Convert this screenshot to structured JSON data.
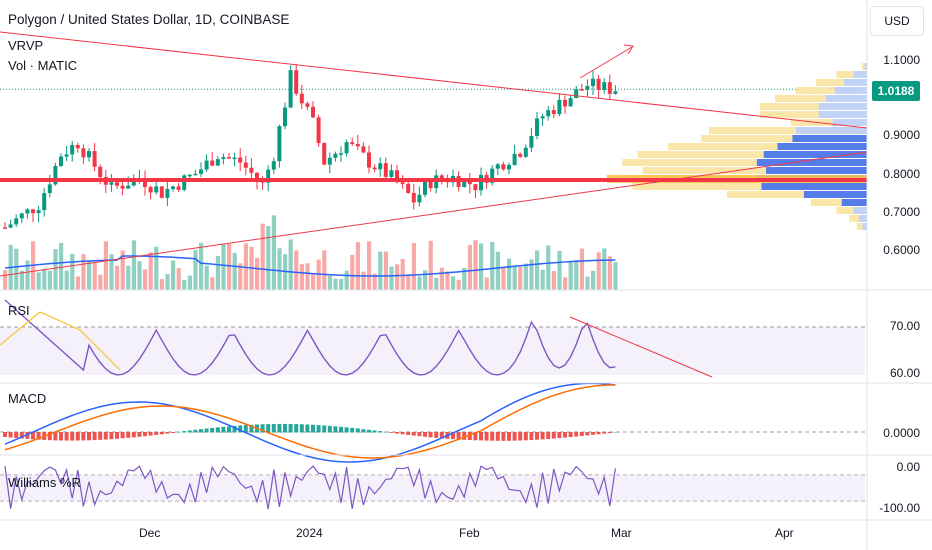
{
  "header": {
    "title": "Polygon / United States Dollar, 1D, COINBASE",
    "indicator_vrvp": "VRVP",
    "indicator_vol": "Vol · MATIC"
  },
  "currency_button": "USD",
  "price_axis": {
    "labels": [
      "1.1000",
      "0.9000",
      "0.8000",
      "0.7000",
      "0.6000"
    ],
    "current_price": "1.0188",
    "current_color": "#089981"
  },
  "panes": {
    "rsi": {
      "name": "RSI",
      "labels": [
        "70.00",
        "60.00"
      ]
    },
    "macd": {
      "name": "MACD",
      "labels": [
        "0.0000"
      ]
    },
    "williams": {
      "name": "Williams %R",
      "labels": [
        "0.00",
        "-100.00"
      ]
    }
  },
  "time_axis": [
    "Dec",
    "2024",
    "Feb",
    "Mar",
    "Apr"
  ],
  "colors": {
    "up": "#089981",
    "down": "#f23645",
    "volume_up": "#8fd0c3",
    "volume_down": "#f7a9a7",
    "trendline": "#f23645",
    "ma": "#2962ff",
    "macd": "#2962ff",
    "signal": "#ff6d00",
    "rsi": "#7e57c2",
    "rsi_ma": "#fbc02d"
  },
  "chart_data": {
    "type": "candlestick",
    "title": "Polygon / United States Dollar, 1D, COINBASE",
    "current_price": 1.0188,
    "support_level": 0.7845,
    "y_axis_ticks": [
      0.6,
      0.7,
      0.8,
      0.9,
      1.1
    ],
    "ylim": [
      0.55,
      1.15
    ],
    "x_ticks": [
      "Dec",
      "2024",
      "Feb",
      "Mar",
      "Apr"
    ],
    "rsi": {
      "levels": [
        70,
        60
      ]
    },
    "macd": {
      "zero_line": 0
    },
    "williams_r": {
      "levels": [
        0,
        -100
      ]
    }
  }
}
